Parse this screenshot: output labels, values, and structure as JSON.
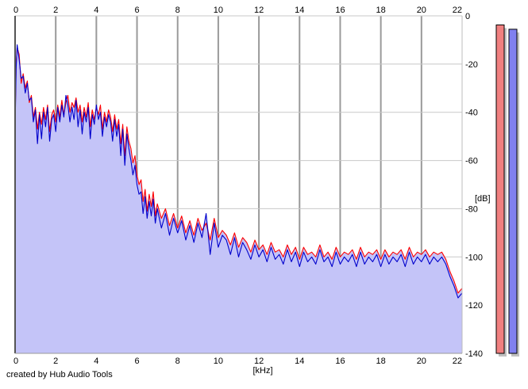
{
  "chart_data": {
    "type": "line",
    "xlabel": "[kHz]",
    "ylabel": "[dB]",
    "xlim": [
      0,
      22
    ],
    "ylim": [
      -140,
      0
    ],
    "x_ticks": [
      "0",
      "2",
      "4",
      "6",
      "8",
      "10",
      "12",
      "14",
      "16",
      "18",
      "20",
      "22"
    ],
    "y_ticks": [
      "0",
      "-20",
      "-40",
      "-60",
      "-80",
      "-100",
      "-120",
      "-140"
    ],
    "grid": true,
    "fill_color": "#c4c4f8",
    "series": [
      {
        "color": "#ff0000",
        "x": [
          0,
          0.05,
          0.1,
          0.2,
          0.3,
          0.4,
          0.5,
          0.6,
          0.7,
          0.8,
          0.9,
          1.0,
          1.1,
          1.2,
          1.3,
          1.4,
          1.5,
          1.6,
          1.7,
          1.8,
          1.9,
          2.0,
          2.1,
          2.2,
          2.3,
          2.4,
          2.5,
          2.6,
          2.7,
          2.8,
          2.9,
          3.0,
          3.1,
          3.2,
          3.3,
          3.4,
          3.5,
          3.6,
          3.7,
          3.8,
          3.9,
          4.0,
          4.1,
          4.2,
          4.3,
          4.4,
          4.5,
          4.6,
          4.7,
          4.8,
          4.9,
          5.0,
          5.1,
          5.2,
          5.3,
          5.4,
          5.5,
          5.6,
          5.7,
          5.8,
          5.9,
          6.0,
          6.1,
          6.2,
          6.3,
          6.4,
          6.5,
          6.6,
          6.7,
          6.8,
          6.9,
          7.0,
          7.2,
          7.4,
          7.6,
          7.8,
          8.0,
          8.2,
          8.4,
          8.6,
          8.8,
          9.0,
          9.2,
          9.4,
          9.6,
          9.8,
          10.0,
          10.2,
          10.4,
          10.6,
          10.8,
          11.0,
          11.2,
          11.4,
          11.6,
          11.8,
          12.0,
          12.2,
          12.4,
          12.6,
          12.8,
          13.0,
          13.2,
          13.4,
          13.6,
          13.8,
          14.0,
          14.2,
          14.4,
          14.6,
          14.8,
          15.0,
          15.2,
          15.4,
          15.6,
          15.8,
          16.0,
          16.2,
          16.4,
          16.6,
          16.8,
          17.0,
          17.2,
          17.4,
          17.6,
          17.8,
          18.0,
          18.2,
          18.4,
          18.6,
          18.8,
          19.0,
          19.2,
          19.4,
          19.6,
          19.8,
          20.0,
          20.2,
          20.4,
          20.6,
          20.8,
          21.0,
          21.2,
          21.4,
          21.6,
          21.8,
          22.0
        ],
        "values": [
          -45,
          -20,
          -13,
          -16,
          -28,
          -24,
          -30,
          -27,
          -36,
          -33,
          -42,
          -38,
          -47,
          -40,
          -45,
          -38,
          -43,
          -37,
          -48,
          -41,
          -39,
          -44,
          -37,
          -42,
          -35,
          -41,
          -36,
          -33,
          -40,
          -36,
          -38,
          -34,
          -40,
          -37,
          -44,
          -38,
          -42,
          -36,
          -46,
          -39,
          -43,
          -38,
          -41,
          -37,
          -47,
          -40,
          -44,
          -39,
          -42,
          -48,
          -41,
          -47,
          -43,
          -53,
          -45,
          -58,
          -46,
          -52,
          -55,
          -61,
          -58,
          -66,
          -70,
          -68,
          -77,
          -72,
          -81,
          -74,
          -79,
          -73,
          -83,
          -78,
          -84,
          -80,
          -87,
          -82,
          -88,
          -83,
          -90,
          -85,
          -91,
          -84,
          -89,
          -86,
          -93,
          -84,
          -92,
          -89,
          -91,
          -95,
          -90,
          -96,
          -92,
          -94,
          -98,
          -93,
          -97,
          -95,
          -99,
          -94,
          -98,
          -97,
          -100,
          -95,
          -99,
          -96,
          -101,
          -96,
          -99,
          -98,
          -100,
          -95,
          -100,
          -98,
          -101,
          -96,
          -100,
          -98,
          -99,
          -97,
          -101,
          -96,
          -100,
          -98,
          -99,
          -97,
          -101,
          -97,
          -100,
          -98,
          -99,
          -97,
          -101,
          -96,
          -100,
          -98,
          -99,
          -97,
          -100,
          -98,
          -99,
          -98,
          -101,
          -106,
          -110,
          -115,
          -113
        ]
      },
      {
        "color": "#0000cc",
        "x": [
          0,
          0.05,
          0.1,
          0.2,
          0.3,
          0.4,
          0.5,
          0.6,
          0.7,
          0.8,
          0.9,
          1.0,
          1.1,
          1.2,
          1.3,
          1.4,
          1.5,
          1.6,
          1.7,
          1.8,
          1.9,
          2.0,
          2.1,
          2.2,
          2.3,
          2.4,
          2.5,
          2.6,
          2.7,
          2.8,
          2.9,
          3.0,
          3.1,
          3.2,
          3.3,
          3.4,
          3.5,
          3.6,
          3.7,
          3.8,
          3.9,
          4.0,
          4.1,
          4.2,
          4.3,
          4.4,
          4.5,
          4.6,
          4.7,
          4.8,
          4.9,
          5.0,
          5.1,
          5.2,
          5.3,
          5.4,
          5.5,
          5.6,
          5.7,
          5.8,
          5.9,
          6.0,
          6.1,
          6.2,
          6.3,
          6.4,
          6.5,
          6.6,
          6.7,
          6.8,
          6.9,
          7.0,
          7.2,
          7.4,
          7.6,
          7.8,
          8.0,
          8.2,
          8.4,
          8.6,
          8.8,
          9.0,
          9.2,
          9.4,
          9.6,
          9.8,
          10.0,
          10.2,
          10.4,
          10.6,
          10.8,
          11.0,
          11.2,
          11.4,
          11.6,
          11.8,
          12.0,
          12.2,
          12.4,
          12.6,
          12.8,
          13.0,
          13.2,
          13.4,
          13.6,
          13.8,
          14.0,
          14.2,
          14.4,
          14.6,
          14.8,
          15.0,
          15.2,
          15.4,
          15.6,
          15.8,
          16.0,
          16.2,
          16.4,
          16.6,
          16.8,
          17.0,
          17.2,
          17.4,
          17.6,
          17.8,
          18.0,
          18.2,
          18.4,
          18.6,
          18.8,
          19.0,
          19.2,
          19.4,
          19.6,
          19.8,
          20.0,
          20.2,
          20.4,
          20.6,
          20.8,
          21.0,
          21.2,
          21.4,
          21.6,
          21.8,
          22.0
        ],
        "values": [
          -47,
          -22,
          -12,
          -18,
          -26,
          -25,
          -32,
          -28,
          -35,
          -34,
          -44,
          -39,
          -53,
          -41,
          -51,
          -40,
          -46,
          -38,
          -52,
          -43,
          -41,
          -48,
          -38,
          -44,
          -37,
          -42,
          -33,
          -37,
          -44,
          -38,
          -43,
          -35,
          -46,
          -39,
          -49,
          -40,
          -44,
          -38,
          -51,
          -41,
          -45,
          -37,
          -43,
          -40,
          -50,
          -42,
          -46,
          -41,
          -44,
          -52,
          -43,
          -50,
          -45,
          -58,
          -47,
          -62,
          -49,
          -55,
          -60,
          -66,
          -62,
          -70,
          -74,
          -73,
          -82,
          -75,
          -84,
          -77,
          -83,
          -76,
          -86,
          -80,
          -88,
          -82,
          -91,
          -84,
          -90,
          -85,
          -93,
          -87,
          -94,
          -86,
          -92,
          -82,
          -99,
          -86,
          -96,
          -91,
          -93,
          -99,
          -92,
          -100,
          -94,
          -97,
          -101,
          -95,
          -100,
          -97,
          -102,
          -96,
          -101,
          -99,
          -103,
          -97,
          -102,
          -98,
          -104,
          -98,
          -102,
          -100,
          -103,
          -97,
          -102,
          -100,
          -104,
          -98,
          -103,
          -100,
          -102,
          -99,
          -104,
          -98,
          -103,
          -100,
          -102,
          -99,
          -104,
          -99,
          -103,
          -100,
          -102,
          -99,
          -104,
          -98,
          -103,
          -100,
          -102,
          -99,
          -103,
          -100,
          -102,
          -100,
          -103,
          -108,
          -112,
          -117,
          -115
        ]
      }
    ]
  },
  "level_meters": [
    {
      "color": "#f08080",
      "level": 0.987
    },
    {
      "color": "#8080f0",
      "level": 0.974
    }
  ],
  "credit_text": "created by Hub Audio Tools"
}
